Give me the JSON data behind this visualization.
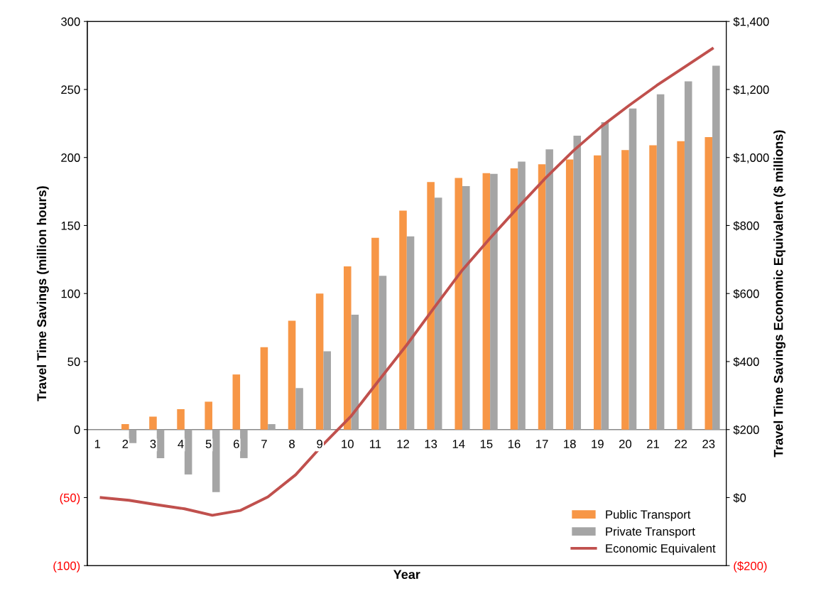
{
  "chart_data": {
    "type": "bar",
    "xlabel": "Year",
    "ylabel": "Travel Time Savings (million hours)",
    "y2label": "Travel Time Savings Economic Equivalent ($ millions)",
    "categories": [
      "1",
      "2",
      "3",
      "4",
      "5",
      "6",
      "7",
      "8",
      "9",
      "10",
      "11",
      "12",
      "13",
      "14",
      "15",
      "16",
      "17",
      "18",
      "19",
      "20",
      "21",
      "22",
      "23"
    ],
    "series": [
      {
        "name": "Public Transport",
        "color": "#f79646",
        "values": [
          0,
          4,
          9.5,
          15,
          20.5,
          40.5,
          60.5,
          80,
          100,
          120,
          141,
          161,
          182,
          185,
          188.5,
          192,
          195,
          198.5,
          201.5,
          205.5,
          209,
          212,
          215
        ]
      },
      {
        "name": "Private Transport",
        "color": "#a5a5a5",
        "values": [
          0,
          -10,
          -21,
          -33,
          -46,
          -21,
          4,
          30.5,
          57.5,
          84.5,
          113,
          142,
          170.5,
          179,
          188,
          197,
          206,
          216,
          226,
          236,
          246.5,
          256,
          267.5
        ]
      },
      {
        "name": "Economic Equivalent",
        "color": "#c0504d",
        "type": "line",
        "axis": "y2",
        "values": [
          0,
          -8,
          -21,
          -33,
          -52,
          -38,
          2,
          67,
          157,
          240,
          345,
          449,
          560,
          669,
          763,
          853,
          940,
          1020,
          1091,
          1153,
          1212,
          1266,
          1320
        ]
      }
    ],
    "ylim": [
      -100,
      300
    ],
    "yticks": [
      {
        "value": -100,
        "label": "(100)"
      },
      {
        "value": -50,
        "label": "(50)"
      },
      0,
      50,
      100,
      150,
      200,
      250,
      300
    ],
    "y2lim": [
      -200,
      1400
    ],
    "y2ticks": [
      {
        "value": -200,
        "label": "($200)"
      },
      {
        "value": 0,
        "label": "$0"
      },
      {
        "value": 200,
        "label": "$200"
      },
      {
        "value": 400,
        "label": "$400"
      },
      {
        "value": 600,
        "label": "$600"
      },
      {
        "value": 800,
        "label": "$800"
      },
      {
        "value": 1000,
        "label": "$1,000"
      },
      {
        "value": 1200,
        "label": "$1,200"
      },
      {
        "value": 1400,
        "label": "$1,400"
      }
    ],
    "legend": "lower right",
    "grid": false,
    "marker": "none",
    "line_style": "solid"
  }
}
